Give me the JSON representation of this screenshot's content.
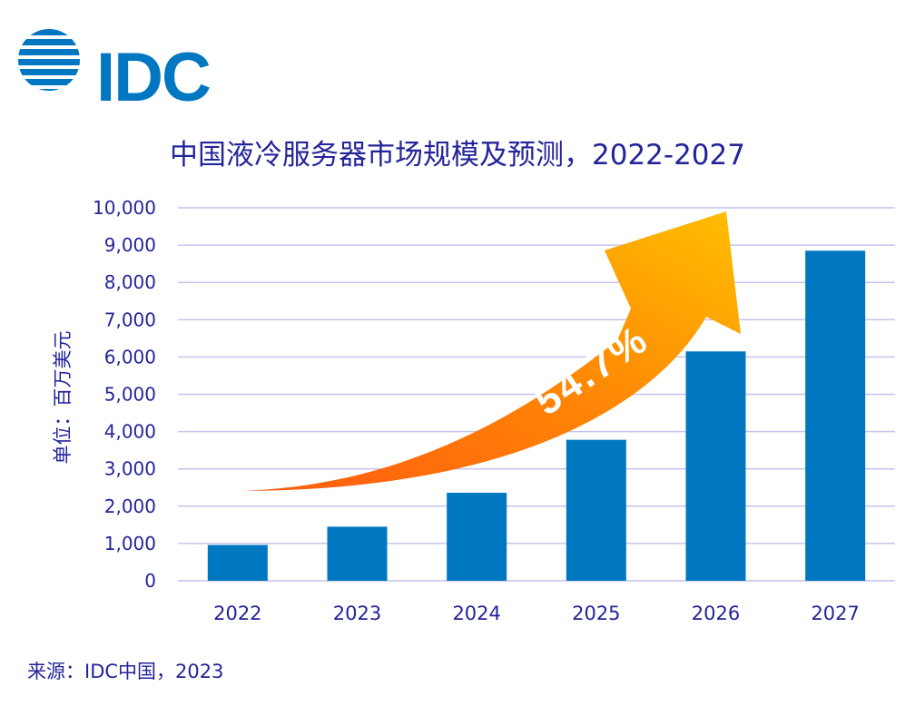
{
  "logo": {
    "text": "IDC"
  },
  "chart_data": {
    "type": "bar",
    "title": "中国液冷服务器市场规模及预测，2022-2027",
    "ylabel": "单位：百万美元",
    "xlabel": "",
    "categories": [
      "2022",
      "2023",
      "2024",
      "2025",
      "2026",
      "2027"
    ],
    "values": [
      960,
      1450,
      2360,
      3780,
      6150,
      8850
    ],
    "ylim": [
      0,
      10000
    ],
    "yticks": [
      "0",
      "1,000",
      "2,000",
      "3,000",
      "4,000",
      "5,000",
      "6,000",
      "7,000",
      "8,000",
      "9,000",
      "10,000"
    ],
    "grid": true,
    "bar_color": "#0078c1",
    "grid_color": "#c4c4ec",
    "axis_text_color": "#24249a",
    "annotation": {
      "text": "54.7%",
      "color_start": "#ff5a10",
      "color_end": "#ffbf00"
    }
  },
  "source": "来源：IDC中国，2023"
}
